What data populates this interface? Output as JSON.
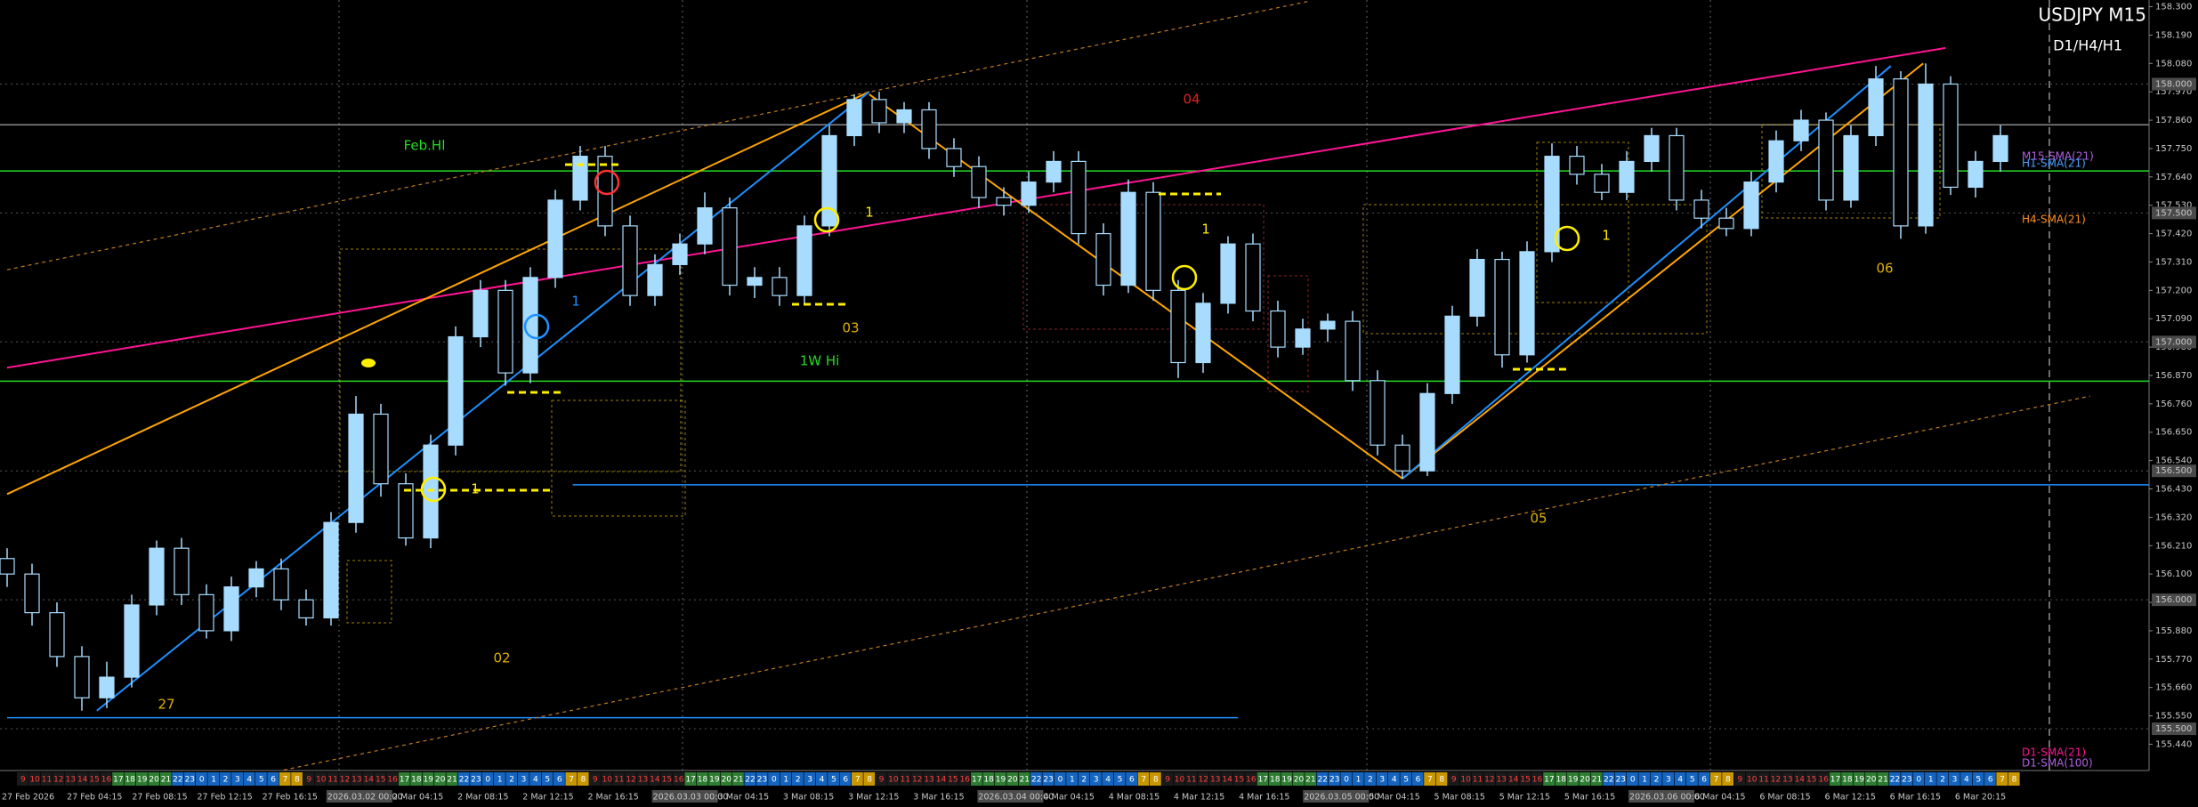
{
  "header": {
    "symbol": "USDJPY M15",
    "timeframes": "D1/H4/H1"
  },
  "chart_data": {
    "type": "candlestick",
    "values": [
      [
        156.16,
        156.2,
        156.05,
        156.1
      ],
      [
        156.1,
        156.14,
        155.9,
        155.95
      ],
      [
        155.95,
        155.99,
        155.74,
        155.78
      ],
      [
        155.78,
        155.82,
        155.57,
        155.62
      ],
      [
        155.62,
        155.76,
        155.58,
        155.7
      ],
      [
        155.7,
        156.02,
        155.66,
        155.98
      ],
      [
        155.98,
        156.23,
        155.94,
        156.2
      ],
      [
        156.2,
        156.24,
        155.98,
        156.02
      ],
      [
        156.02,
        156.06,
        155.85,
        155.88
      ],
      [
        155.88,
        156.09,
        155.84,
        156.05
      ],
      [
        156.05,
        156.15,
        156.01,
        156.12
      ],
      [
        156.12,
        156.16,
        155.96,
        156.0
      ],
      [
        156.0,
        156.04,
        155.9,
        155.93
      ],
      [
        155.93,
        156.34,
        155.9,
        156.3
      ],
      [
        156.3,
        156.79,
        156.26,
        156.72
      ],
      [
        156.72,
        156.76,
        156.4,
        156.45
      ],
      [
        156.45,
        156.49,
        156.21,
        156.24
      ],
      [
        156.24,
        156.64,
        156.2,
        156.6
      ],
      [
        156.6,
        157.06,
        156.56,
        157.02
      ],
      [
        157.02,
        157.24,
        156.98,
        157.2
      ],
      [
        157.2,
        157.24,
        156.83,
        156.88
      ],
      [
        156.88,
        157.29,
        156.84,
        157.25
      ],
      [
        157.25,
        157.59,
        157.21,
        157.55
      ],
      [
        157.55,
        157.76,
        157.51,
        157.72
      ],
      [
        157.72,
        157.76,
        157.41,
        157.45
      ],
      [
        157.45,
        157.49,
        157.14,
        157.18
      ],
      [
        157.18,
        157.34,
        157.14,
        157.3
      ],
      [
        157.3,
        157.42,
        157.26,
        157.38
      ],
      [
        157.38,
        157.58,
        157.34,
        157.52
      ],
      [
        157.52,
        157.56,
        157.18,
        157.22
      ],
      [
        157.22,
        157.29,
        157.17,
        157.25
      ],
      [
        157.25,
        157.29,
        157.14,
        157.18
      ],
      [
        157.18,
        157.49,
        157.15,
        157.45
      ],
      [
        157.45,
        157.84,
        157.41,
        157.8
      ],
      [
        157.8,
        157.96,
        157.76,
        157.94
      ],
      [
        157.94,
        157.97,
        157.81,
        157.85
      ],
      [
        157.85,
        157.93,
        157.81,
        157.9
      ],
      [
        157.9,
        157.93,
        157.71,
        157.75
      ],
      [
        157.75,
        157.79,
        157.64,
        157.68
      ],
      [
        157.68,
        157.72,
        157.52,
        157.56
      ],
      [
        157.56,
        157.6,
        157.49,
        157.53
      ],
      [
        157.53,
        157.66,
        157.5,
        157.62
      ],
      [
        157.62,
        157.74,
        157.58,
        157.7
      ],
      [
        157.7,
        157.74,
        157.38,
        157.42
      ],
      [
        157.42,
        157.46,
        157.18,
        157.22
      ],
      [
        157.22,
        157.63,
        157.19,
        157.58
      ],
      [
        157.58,
        157.62,
        157.16,
        157.2
      ],
      [
        157.2,
        157.24,
        156.86,
        156.92
      ],
      [
        156.92,
        157.19,
        156.88,
        157.15
      ],
      [
        157.15,
        157.41,
        157.11,
        157.38
      ],
      [
        157.38,
        157.42,
        157.08,
        157.12
      ],
      [
        157.12,
        157.16,
        156.94,
        156.98
      ],
      [
        156.98,
        157.09,
        156.95,
        157.05
      ],
      [
        157.05,
        157.11,
        157.0,
        157.08
      ],
      [
        157.08,
        157.12,
        156.81,
        156.85
      ],
      [
        156.85,
        156.89,
        156.56,
        156.6
      ],
      [
        156.6,
        156.64,
        156.47,
        156.5
      ],
      [
        156.5,
        156.84,
        156.48,
        156.8
      ],
      [
        156.8,
        157.14,
        156.76,
        157.1
      ],
      [
        157.1,
        157.36,
        157.06,
        157.32
      ],
      [
        157.32,
        157.35,
        156.9,
        156.95
      ],
      [
        156.95,
        157.39,
        156.92,
        157.35
      ],
      [
        157.35,
        157.77,
        157.31,
        157.72
      ],
      [
        157.72,
        157.76,
        157.61,
        157.65
      ],
      [
        157.65,
        157.69,
        157.55,
        157.58
      ],
      [
        157.58,
        157.74,
        157.55,
        157.7
      ],
      [
        157.7,
        157.83,
        157.66,
        157.8
      ],
      [
        157.8,
        157.83,
        157.51,
        157.55
      ],
      [
        157.55,
        157.59,
        157.44,
        157.48
      ],
      [
        157.48,
        157.52,
        157.41,
        157.44
      ],
      [
        157.44,
        157.66,
        157.41,
        157.62
      ],
      [
        157.62,
        157.82,
        157.58,
        157.78
      ],
      [
        157.78,
        157.9,
        157.74,
        157.86
      ],
      [
        157.86,
        157.89,
        157.51,
        157.55
      ],
      [
        157.55,
        157.84,
        157.52,
        157.8
      ],
      [
        157.8,
        158.07,
        157.76,
        158.02
      ],
      [
        158.02,
        158.05,
        157.4,
        157.45
      ],
      [
        157.45,
        158.08,
        157.42,
        158.0
      ],
      [
        158.0,
        158.03,
        157.57,
        157.6
      ],
      [
        157.6,
        157.74,
        157.56,
        157.7
      ],
      [
        157.7,
        157.84,
        157.66,
        157.8
      ]
    ],
    "up_color": "#a8dcff",
    "down_color": "#000000",
    "wick_color": "#a8dcff",
    "ylim": [
      155.338,
      158.326
    ],
    "yticks": [
      {
        "value": 158.3,
        "label": "158.300"
      },
      {
        "value": 158.19,
        "label": "158.190"
      },
      {
        "value": 158.08,
        "label": "158.080"
      },
      {
        "value": 157.97,
        "label": "157.970"
      },
      {
        "value": 157.86,
        "label": "157.860"
      },
      {
        "value": 157.75,
        "label": "157.750"
      },
      {
        "value": 157.64,
        "label": "157.640"
      },
      {
        "value": 157.53,
        "label": "157.530"
      },
      {
        "value": 157.42,
        "label": "157.420"
      },
      {
        "value": 157.31,
        "label": "157.310"
      },
      {
        "value": 157.2,
        "label": "157.200"
      },
      {
        "value": 157.09,
        "label": "157.090"
      },
      {
        "value": 156.98,
        "label": "156.980"
      },
      {
        "value": 156.87,
        "label": "156.870"
      },
      {
        "value": 156.76,
        "label": "156.760"
      },
      {
        "value": 156.65,
        "label": "156.650"
      },
      {
        "value": 156.54,
        "label": "156.540"
      },
      {
        "value": 156.43,
        "label": "156.430"
      },
      {
        "value": 156.32,
        "label": "156.320"
      },
      {
        "value": 156.21,
        "label": "156.210"
      },
      {
        "value": 156.1,
        "label": "156.100"
      },
      {
        "value": 155.99,
        "label": "155.990"
      },
      {
        "value": 155.88,
        "label": "155.880"
      },
      {
        "value": 155.77,
        "label": "155.770"
      },
      {
        "value": 155.66,
        "label": "155.660"
      },
      {
        "value": 155.55,
        "label": "155.550"
      },
      {
        "value": 155.44,
        "label": "155.440"
      }
    ],
    "grid": true,
    "grid_levels": [
      {
        "value": 158,
        "label": "158.000"
      },
      {
        "value": 157.5,
        "label": "157.500"
      },
      {
        "value": 157,
        "label": "157.000"
      },
      {
        "value": 156.5,
        "label": "156.500"
      },
      {
        "value": 156,
        "label": "156.000"
      },
      {
        "value": 155.5,
        "label": "155.500"
      }
    ],
    "x_labels": [
      "27 Feb 2026",
      "27 Feb 04:15",
      "27 Feb 08:15",
      "27 Feb 12:15",
      "27 Feb 16:15",
      "2026.03.02 00:00",
      "2 Mar 04:15",
      "2 Mar 08:15",
      "2 Mar 12:15",
      "2 Mar 16:15",
      "2026.03.03 00:00",
      "3 Mar 04:15",
      "3 Mar 08:15",
      "3 Mar 12:15",
      "3 Mar 16:15",
      "2026.03.04 00:00",
      "4 Mar 04:15",
      "4 Mar 08:15",
      "4 Mar 12:15",
      "4 Mar 16:15",
      "2026.03.05 00:00",
      "5 Mar 04:15",
      "5 Mar 08:15",
      "5 Mar 12:15",
      "5 Mar 16:15",
      "2026.03.06 00:00",
      "6 Mar 04:15",
      "6 Mar 08:15",
      "6 Mar 12:15",
      "6 Mar 16:15",
      "6 Mar 20:15"
    ],
    "hour_strip": [
      9,
      10,
      11,
      12,
      13,
      14,
      15,
      16,
      17,
      18,
      19,
      20,
      21,
      22,
      23,
      0,
      1,
      2,
      3,
      4,
      5,
      6,
      7,
      8,
      9,
      10,
      11,
      12,
      13,
      14,
      15,
      16,
      17,
      18,
      19,
      20,
      21,
      22,
      23,
      0,
      1,
      2,
      3,
      4,
      5,
      6,
      7,
      8,
      9,
      10,
      11,
      12,
      13,
      14,
      15,
      16,
      17,
      18,
      19,
      20,
      21,
      22,
      23,
      0,
      1,
      2,
      3,
      4,
      5,
      6,
      7,
      8,
      9,
      10,
      11,
      12,
      13,
      14,
      15,
      16,
      17,
      18,
      19,
      20,
      21,
      22,
      23,
      0,
      1,
      2,
      3,
      4,
      5,
      6,
      7,
      8,
      9,
      10,
      11,
      12,
      13,
      14,
      15,
      16,
      17,
      18,
      19,
      20,
      21,
      22,
      23,
      0,
      1,
      2,
      3,
      4,
      5,
      6,
      7,
      8,
      9,
      10,
      11,
      12,
      13,
      14,
      15,
      16,
      17,
      18,
      19,
      20,
      21,
      22,
      23,
      0,
      1,
      2,
      3,
      4,
      5,
      6,
      7,
      8,
      9,
      10,
      11,
      12,
      13,
      14,
      15,
      16,
      17,
      18,
      19,
      20,
      21,
      22,
      23,
      0,
      1,
      2,
      3,
      4,
      5,
      6,
      7,
      8
    ],
    "levels": [
      {
        "price": 157.842,
        "color": "#8a8a8a"
      },
      {
        "price": 157.663,
        "color": "#22dd22"
      },
      {
        "price": 156.848,
        "color": "#22dd22"
      },
      {
        "price": 156.446,
        "color": "#1e90ff",
        "x": [
          22.7,
          86
        ]
      },
      {
        "price": 155.543,
        "color": "#1e90ff",
        "x": [
          0,
          49.4
        ]
      }
    ],
    "trendlines": [
      {
        "x": [
          0,
          77.8
        ],
        "y": [
          156.9,
          158.14
        ],
        "color": "#ff1493"
      },
      {
        "x": [
          0,
          34.6
        ],
        "y": [
          156.41,
          157.97
        ],
        "color": "#ffa500"
      },
      {
        "x": [
          3.6,
          34.6
        ],
        "y": [
          155.57,
          157.97
        ],
        "color": "#1e90ff"
      },
      {
        "x": [
          34.6,
          56
        ],
        "y": [
          157.96,
          156.47
        ],
        "color": "#ffa500"
      },
      {
        "x": [
          56,
          76.9
        ],
        "y": [
          156.47,
          158.08
        ],
        "color": "#ffa500"
      },
      {
        "x": [
          56,
          75.6
        ],
        "y": [
          156.47,
          158.07
        ],
        "color": "#1e90ff"
      },
      {
        "x": [
          0,
          52.2
        ],
        "y": [
          157.28,
          158.32
        ],
        "color": "#c07a20",
        "dashed": true
      },
      {
        "x": [
          11.1,
          83.6
        ],
        "y": [
          155.34,
          156.79
        ],
        "color": "#c07a20",
        "dashed": true
      }
    ],
    "annotations": [
      {
        "text": "Feb.Hl",
        "color": "#22dd22"
      },
      {
        "text": "1W Hi",
        "color": "#22dd22"
      },
      {
        "text": "04",
        "color": "#dd2222"
      },
      {
        "text": "03",
        "color": "#e0b000"
      },
      {
        "text": "02",
        "color": "#e0b000"
      },
      {
        "text": "05",
        "color": "#e0b000"
      },
      {
        "text": "06",
        "color": "#e0b000"
      },
      {
        "text": "27",
        "color": "#e0b000"
      },
      {
        "text": "1",
        "color": "#ffee00"
      },
      {
        "text": "1",
        "color": "#ffee00"
      },
      {
        "text": "1",
        "color": "#ffee00"
      },
      {
        "text": "1",
        "color": "#ffee00"
      },
      {
        "text": "1",
        "color": "#1e90ff"
      }
    ],
    "indicator_labels": [
      {
        "text": "M15-SMA(21)",
        "color": "#b060e0"
      },
      {
        "text": "H1-SMA(21)",
        "color": "#4aa0ff"
      },
      {
        "text": "H4-SMA(21)",
        "color": "#ff9020"
      },
      {
        "text": "D1-SMA(21)",
        "color": "#ff1493"
      },
      {
        "text": "D1-SMA(100)",
        "color": "#b060e0"
      }
    ]
  }
}
